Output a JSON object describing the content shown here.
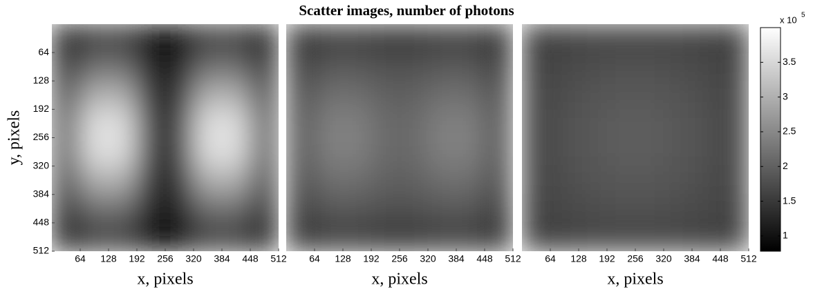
{
  "title": "Scatter images, number of photons",
  "colorbar": {
    "colormap": "gray",
    "clim": [
      0.78,
      4.0
    ],
    "ticks": [
      1,
      1.5,
      2,
      2.5,
      3,
      3.5
    ],
    "multiplier": {
      "base": "x 10",
      "exponent": "5"
    }
  },
  "chart_data": [
    {
      "type": "heatmap",
      "xlabel": "x, pixels",
      "ylabel": "y, pixels",
      "x": [
        32,
        96,
        160,
        224,
        288,
        352,
        416,
        480
      ],
      "y": [
        32,
        96,
        160,
        224,
        288,
        352,
        416,
        480
      ],
      "xlim": [
        0,
        512
      ],
      "ylim": [
        512,
        0
      ],
      "xticks": [
        64,
        128,
        192,
        256,
        320,
        384,
        448,
        512
      ],
      "yticks": [
        64,
        128,
        192,
        256,
        320,
        384,
        448,
        512
      ],
      "z": [
        [
          1.2,
          1.6,
          1.6,
          1.0,
          1.0,
          1.6,
          1.6,
          1.2
        ],
        [
          1.5,
          2.2,
          2.2,
          1.2,
          1.2,
          2.2,
          2.2,
          1.5
        ],
        [
          1.8,
          3.0,
          3.0,
          1.4,
          1.4,
          3.0,
          3.0,
          1.8
        ],
        [
          2.0,
          3.6,
          3.6,
          1.6,
          1.6,
          3.6,
          3.6,
          2.0
        ],
        [
          2.0,
          3.6,
          3.6,
          1.6,
          1.6,
          3.6,
          3.6,
          2.0
        ],
        [
          1.8,
          3.0,
          3.0,
          1.4,
          1.4,
          3.0,
          3.0,
          1.8
        ],
        [
          1.5,
          2.2,
          2.2,
          1.2,
          1.2,
          2.2,
          2.2,
          1.5
        ],
        [
          1.2,
          1.6,
          1.6,
          1.0,
          1.0,
          1.6,
          1.6,
          1.2
        ]
      ]
    },
    {
      "type": "heatmap",
      "xlabel": "x, pixels",
      "x": [
        32,
        96,
        160,
        224,
        288,
        352,
        416,
        480
      ],
      "y": [
        32,
        96,
        160,
        224,
        288,
        352,
        416,
        480
      ],
      "xlim": [
        0,
        512
      ],
      "ylim": [
        512,
        0
      ],
      "xticks": [
        64,
        128,
        192,
        256,
        320,
        384,
        448,
        512
      ],
      "z": [
        [
          1.4,
          1.6,
          1.6,
          1.5,
          1.5,
          1.6,
          1.6,
          1.4
        ],
        [
          1.6,
          1.9,
          1.9,
          1.8,
          1.8,
          1.9,
          1.9,
          1.6
        ],
        [
          1.8,
          2.2,
          2.2,
          2.0,
          2.0,
          2.2,
          2.2,
          1.8
        ],
        [
          1.9,
          2.4,
          2.4,
          2.1,
          2.1,
          2.4,
          2.4,
          1.9
        ],
        [
          1.9,
          2.4,
          2.4,
          2.1,
          2.1,
          2.4,
          2.4,
          1.9
        ],
        [
          1.8,
          2.2,
          2.2,
          2.0,
          2.0,
          2.2,
          2.2,
          1.8
        ],
        [
          1.6,
          1.9,
          1.9,
          1.8,
          1.8,
          1.9,
          1.9,
          1.6
        ],
        [
          1.4,
          1.6,
          1.6,
          1.5,
          1.5,
          1.6,
          1.6,
          1.4
        ]
      ]
    },
    {
      "type": "heatmap",
      "xlabel": "x, pixels",
      "x": [
        32,
        96,
        160,
        224,
        288,
        352,
        416,
        480
      ],
      "y": [
        32,
        96,
        160,
        224,
        288,
        352,
        416,
        480
      ],
      "xlim": [
        0,
        512
      ],
      "ylim": [
        512,
        0
      ],
      "xticks": [
        64,
        128,
        192,
        256,
        320,
        384,
        448,
        512
      ],
      "z": [
        [
          1.55,
          1.6,
          1.65,
          1.65,
          1.65,
          1.65,
          1.6,
          1.55
        ],
        [
          1.6,
          1.7,
          1.75,
          1.8,
          1.8,
          1.75,
          1.7,
          1.6
        ],
        [
          1.65,
          1.75,
          1.85,
          1.9,
          1.9,
          1.85,
          1.75,
          1.65
        ],
        [
          1.65,
          1.8,
          1.9,
          1.95,
          1.95,
          1.9,
          1.8,
          1.65
        ],
        [
          1.65,
          1.8,
          1.9,
          1.95,
          1.95,
          1.9,
          1.8,
          1.65
        ],
        [
          1.65,
          1.75,
          1.85,
          1.9,
          1.9,
          1.85,
          1.75,
          1.65
        ],
        [
          1.6,
          1.7,
          1.75,
          1.8,
          1.8,
          1.75,
          1.7,
          1.6
        ],
        [
          1.55,
          1.6,
          1.65,
          1.65,
          1.65,
          1.65,
          1.6,
          1.55
        ]
      ]
    }
  ]
}
